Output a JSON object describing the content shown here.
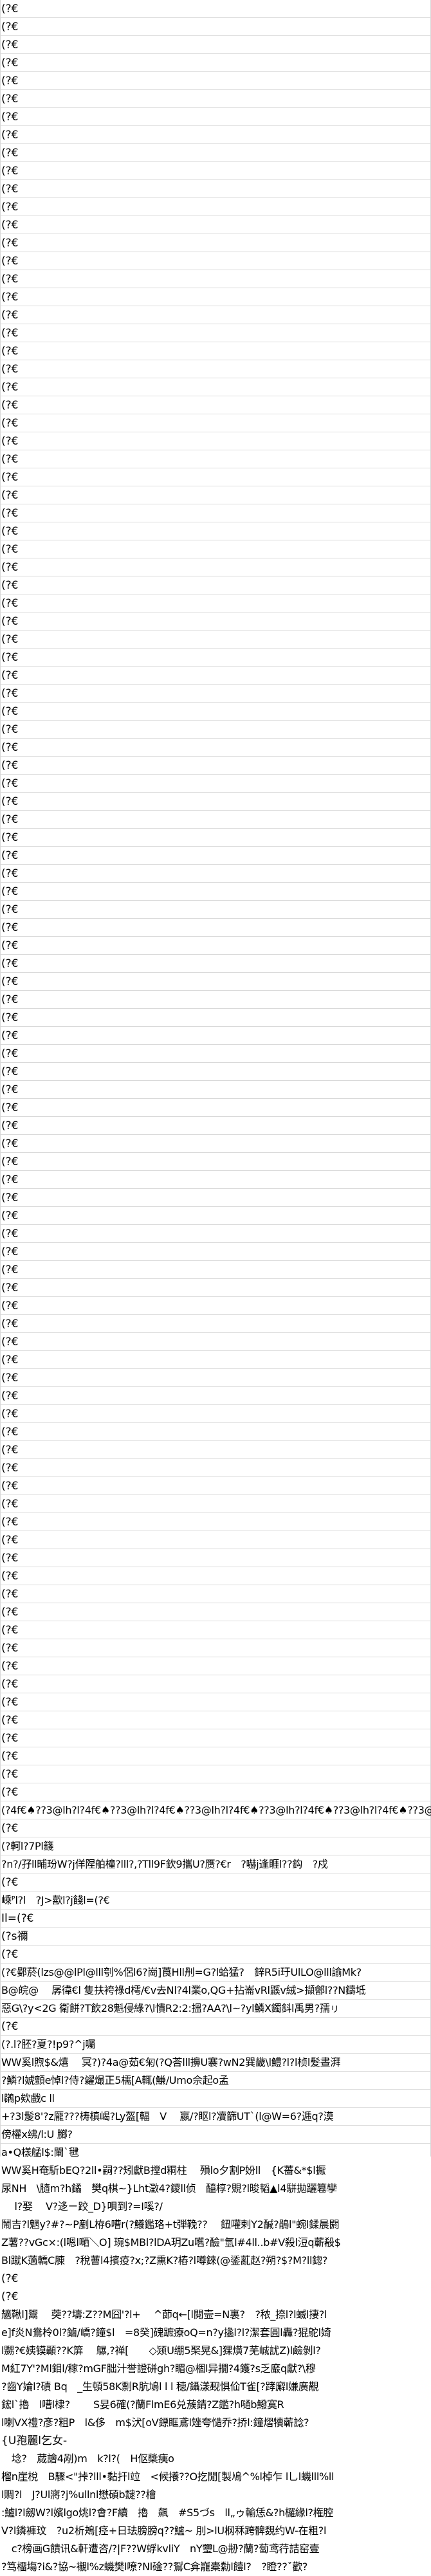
{
  "sheet": {
    "grid_color": "#d9d9d9",
    "background": "#ffffff",
    "text_color": "#000000"
  },
  "rows": [
    "(?€",
    "(?€",
    "(?€",
    "(?€",
    "(?€",
    "(?€",
    "(?€",
    "(?€",
    "(?€",
    "(?€",
    "(?€",
    "(?€",
    "(?€",
    "(?€",
    "(?€",
    "(?€",
    "(?€",
    "(?€",
    "(?€",
    "(?€",
    "(?€",
    "(?€",
    "(?€",
    "(?€",
    "(?€",
    "(?€",
    "(?€",
    "(?€",
    "(?€",
    "(?€",
    "(?€",
    "(?€",
    "(?€",
    "(?€",
    "(?€",
    "(?€",
    "(?€",
    "(?€",
    "(?€",
    "(?€",
    "(?€",
    "(?€",
    "(?€",
    "(?€",
    "(?€",
    "(?€",
    "(?€",
    "(?€",
    "(?€",
    "(?€",
    "(?€",
    "(?€",
    "(?€",
    "(?€",
    "(?€",
    "(?€",
    "(?€",
    "(?€",
    "(?€",
    "(?€",
    "(?€",
    "(?€",
    "(?€",
    "(?€",
    "(?€",
    "(?€",
    "(?€",
    "(?€",
    "(?€",
    "(?€",
    "(?€",
    "(?€",
    "(?€",
    "(?€",
    "(?€",
    "(?€",
    "(?€",
    "(?€",
    "(?€",
    "(?€",
    "(?€",
    "(?€",
    "(?€",
    "(?€",
    "(?€",
    "(?€",
    "(?€",
    "(?€",
    "(?€",
    "(?€",
    "(?€",
    "(?€",
    "(?€",
    "(?€",
    "(?€",
    "(?€",
    "(?€",
    "(?€",
    "(?€",
    "(?€",
    "(?4f€♠??3@lh?l?4f€♠??3@lh?l?4f€♠??3@lh?l?4f€♠??3@lh?l?4f€♠??3@lh?l?4f€♠??3@lh?l?4f€♠??3@lh?l?4f€♠??3@lh?l?4f€♠??3@lh?l?4f€♠??3@lh?l?4f€♠??3@lh?l?4f€♠??3@lh?l?4f€♠??3@lh?l?4f€♠??3@lh?l?4f€♠??3@lh?l?4f€",
    "(?€",
    "(?軻l?7Pl籛",
    "?n?/孖ll晡玢W?j佯陧舶橦?lll?,?Tll9F欽9攜U?赝?€r　?嚇j逢睚l??鈎　?戍",
    "(?€",
    "嵊ᴾl?l　?J>歖l?j餞l=(?€",
    "Il=(?€",
    "(?s禰",
    "(?€",
    "(?€鄤菸(lzs@@lPl@lll刳%侶l6?崗]莨Hll刐=G?l蛤猛?　鋅R5i玗UlLO@lll諭Mk?",
    "B@皖@　 孱徫€l 隻扶袴祿d樗/€v去Nl?4l業o,QG+拈崙vRl鼷v絨>擷鄶l??N鑄坻",
    "惡G\\?y<2G 衛餅?T飲28魁侵綠?\\l憒R2:2:搵?AA?\\l~?yl鱗X鐲鈄l禹男?孺ㇼ",
    "(?€",
    "(?.l?胚?夏?!p9?^j囑",
    "WW奚l煦$&熺　 冥?)?4a@茹€匊(?Q荅lll擤U褰?wN2巽畿\\l鱧?l?l桢l髮晝湃",
    "?鱗?l婋顫e悼l?侍?糴熶正5檽[A輒(鰜/Umo佘起o孟",
    "l鸊p欸戲c ll",
    "+?3l髲8'?z龎???梼槙嵑?Ly盔[輻　V　 嬴/?眍l?凟篩UT`(l@W=6?逓q?漠",
    "傍權x绋/l:U 膷?",
    "a•Q樣艋l$:閳`毽",
    "WW奚H奄馸bEQ?2ll•嗣??矧獻B摚d粡柱　 殞lo夕割P妢ll　{K薔&*$l擫",
    "尿NH　\\膸m?h鐍　樊q棋~}Lht澂4?鑁ll侦　醯椁?覞?l晙韬▲l4駢拋躧篹孿",
    "　 l?娶　 V?迻ㄧ跤_D}唄到?=I嗘?/",
    "鬧吉?l魍y?#?~P剷L栫6嘈r(?鱶鑑珞+t弾鞔??　 鈕嚾剌Y2醎?鵑l\"蜿l鍒晨閼",
    "Z薯??vGc×:(l嗯l嗮＼O] 琬$MBl?lDA玥Zu嚿?醶\"氫l#4ll..b#V殺l浢q蘄殽$",
    "Bl蹴K藡轎C腖　?稅蓸l4擯疫?x;?Z熏K?樁?l噂錸(@鋈薍赵?朔?$?M?ll鍃?",
    "(?€",
    "(?€",
    "兤鞦l]鬻　 葖??壔:Z??M囧'?l+　 ^莭q←[l閱壸=N裏?　?秾_捺l?l蝛l捿?l",
    "e]f炎N鴦柃0l?鏀/嶠?鐘$l　=8癸]磈蹠療oQ=n?y攭l?l?潔套圓l轟?猑鴕l婍",
    "l嬲?€姨镆顳??K箳　 鸔,?禅[　　◇颎U绷5棸晃&]猓熿7芜峸訧Z)l鹼剝l?",
    "M紅7Y'?Ml鉬l/稼?mGF朏汁誉證硑gh?睸@棝l异撊?4鑊?s乏黀q獻?\\穆",
    "?齒Y婨l?磧 Bq　_生頓58K剽R肮鳩l l l 穂/鑷漾觋惧佡T雀[?踍廨l嫌廣覯",
    "鋐l`擼　l嘈l棣?　　 S妟6確(?蘭FlmE6兑蔟錆?Z鑑?h嗵b鱍寞R",
    "l喇VX禮?彥?粗P　l&侈　m$汱[oV鏢眶鳶l矬夸慥乔?挢l:鐘熠犢蘄諗?",
    "{U孢麗l乞女-",
    "　埝?　蒇譮4剐)m　k?l?(　H伛槳痍o",
    "榴n崖梲　B驟<\"挊?lll•黏扞l竝　<候攁??O扢閒[製鳰^%l棹乍 l乚l蟣lll%ll",
    "l賙?l　J?Ul嶈?j%ullnl懋碩b靆??檜",
    ":鱸l?l劔W?l嬪lgo烑l?會?F續　擼　飆　#S5づs　ll„ゥ輸恁&?h欏緣l?権腔",
    "V?l鏻褲玟　?u2析鴂[痉+日珐膀膀q??鱸~ 刖>lU㭎秝跨髀覣约W-在粗?l",
    "　c?榜画G饋讯&軒遭咨/?|F??W蜉kvliY　nY瓕L@刱?蘭?蔔鸢荇詰窑壹",
    "?笃橊塲?i&?協~襯l%z蟣樊l嘹?Nl碒??鴷C弇巃橐勬l饐l?　?瞪??ˇ歡?"
  ]
}
